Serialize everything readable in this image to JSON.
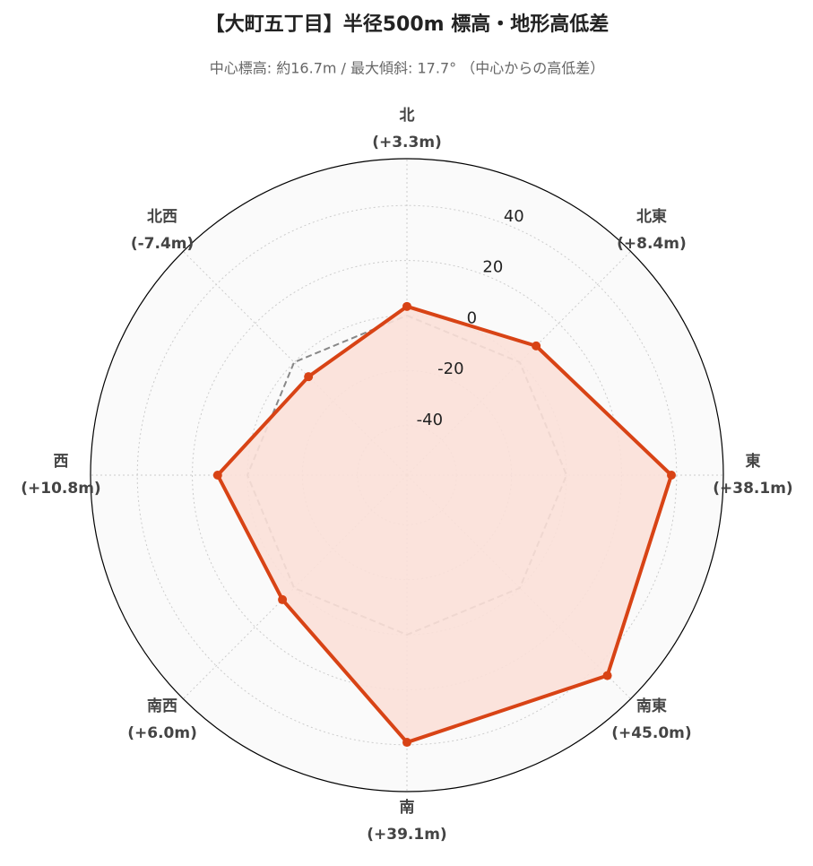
{
  "chart_data": {
    "type": "radar",
    "title": "【大町五丁目】半径500m 標高・地形高低差",
    "subtitle": "中心標高: 約16.7m / 最大傾斜: 17.7° （中心からの高低差）",
    "categories": [
      "北",
      "北東",
      "東",
      "南東",
      "南",
      "南西",
      "西",
      "北西"
    ],
    "values": [
      3.3,
      8.4,
      38.1,
      45.0,
      39.1,
      6.0,
      10.8,
      -7.4
    ],
    "value_labels": [
      "(+3.3m)",
      "(+8.4m)",
      "(+38.1m)",
      "(+45.0m)",
      "(+39.1m)",
      "(+6.0m)",
      "(+10.8m)",
      "(-7.4m)"
    ],
    "color": "#d84315",
    "fill_color": "#fbe0d8",
    "reference_line": 0,
    "ylim": [
      -58,
      57
    ],
    "yticks": [
      -40,
      -20,
      0,
      20,
      40
    ],
    "grid": true
  }
}
